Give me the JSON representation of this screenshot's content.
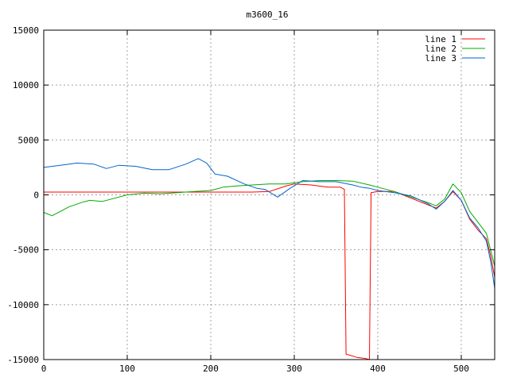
{
  "chart_data": {
    "type": "line",
    "title": "m3600_16",
    "xlabel": "",
    "ylabel": "",
    "xlim": [
      0,
      540
    ],
    "ylim": [
      -15000,
      15000
    ],
    "xticks": [
      0,
      100,
      200,
      300,
      400,
      500
    ],
    "yticks": [
      -15000,
      -10000,
      -5000,
      0,
      5000,
      10000,
      15000
    ],
    "grid": true,
    "legend_position": "top-right",
    "series": [
      {
        "name": "line 1",
        "color": "#ff0000",
        "points": [
          [
            0,
            250
          ],
          [
            50,
            250
          ],
          [
            100,
            250
          ],
          [
            150,
            250
          ],
          [
            200,
            250
          ],
          [
            250,
            250
          ],
          [
            270,
            300
          ],
          [
            290,
            800
          ],
          [
            300,
            1000
          ],
          [
            320,
            900
          ],
          [
            340,
            700
          ],
          [
            355,
            700
          ],
          [
            360,
            500
          ],
          [
            362,
            -14500
          ],
          [
            375,
            -14800
          ],
          [
            385,
            -14900
          ],
          [
            390,
            -15000
          ],
          [
            392,
            200
          ],
          [
            400,
            300
          ],
          [
            420,
            300
          ],
          [
            440,
            -300
          ],
          [
            460,
            -900
          ],
          [
            470,
            -1200
          ],
          [
            480,
            -600
          ],
          [
            490,
            300
          ],
          [
            500,
            -500
          ],
          [
            510,
            -2200
          ],
          [
            520,
            -3200
          ],
          [
            530,
            -4000
          ],
          [
            535,
            -5500
          ],
          [
            540,
            -7500
          ]
        ]
      },
      {
        "name": "line 2",
        "color": "#00aa00",
        "points": [
          [
            0,
            -1600
          ],
          [
            10,
            -1900
          ],
          [
            20,
            -1500
          ],
          [
            30,
            -1100
          ],
          [
            45,
            -700
          ],
          [
            55,
            -500
          ],
          [
            70,
            -600
          ],
          [
            85,
            -300
          ],
          [
            100,
            0
          ],
          [
            120,
            150
          ],
          [
            140,
            100
          ],
          [
            160,
            200
          ],
          [
            180,
            300
          ],
          [
            200,
            400
          ],
          [
            215,
            700
          ],
          [
            230,
            800
          ],
          [
            250,
            900
          ],
          [
            270,
            1000
          ],
          [
            290,
            1000
          ],
          [
            310,
            1200
          ],
          [
            330,
            1300
          ],
          [
            350,
            1300
          ],
          [
            370,
            1250
          ],
          [
            390,
            900
          ],
          [
            400,
            700
          ],
          [
            420,
            300
          ],
          [
            440,
            -200
          ],
          [
            460,
            -700
          ],
          [
            470,
            -1000
          ],
          [
            480,
            -400
          ],
          [
            490,
            1000
          ],
          [
            500,
            200
          ],
          [
            510,
            -1500
          ],
          [
            520,
            -2500
          ],
          [
            530,
            -3500
          ],
          [
            535,
            -5000
          ],
          [
            540,
            -6500
          ]
        ]
      },
      {
        "name": "line 3",
        "color": "#0066cc",
        "points": [
          [
            0,
            2500
          ],
          [
            20,
            2700
          ],
          [
            40,
            2900
          ],
          [
            60,
            2800
          ],
          [
            75,
            2400
          ],
          [
            90,
            2700
          ],
          [
            110,
            2600
          ],
          [
            130,
            2300
          ],
          [
            150,
            2300
          ],
          [
            170,
            2800
          ],
          [
            185,
            3300
          ],
          [
            195,
            2900
          ],
          [
            205,
            1900
          ],
          [
            220,
            1700
          ],
          [
            240,
            1000
          ],
          [
            255,
            600
          ],
          [
            265,
            500
          ],
          [
            280,
            -200
          ],
          [
            295,
            600
          ],
          [
            310,
            1300
          ],
          [
            330,
            1200
          ],
          [
            350,
            1200
          ],
          [
            370,
            900
          ],
          [
            380,
            700
          ],
          [
            390,
            600
          ],
          [
            400,
            400
          ],
          [
            420,
            200
          ],
          [
            440,
            -100
          ],
          [
            460,
            -800
          ],
          [
            470,
            -1300
          ],
          [
            480,
            -600
          ],
          [
            490,
            400
          ],
          [
            500,
            -500
          ],
          [
            510,
            -2100
          ],
          [
            520,
            -3000
          ],
          [
            530,
            -4200
          ],
          [
            535,
            -6000
          ],
          [
            540,
            -8500
          ]
        ]
      }
    ]
  }
}
